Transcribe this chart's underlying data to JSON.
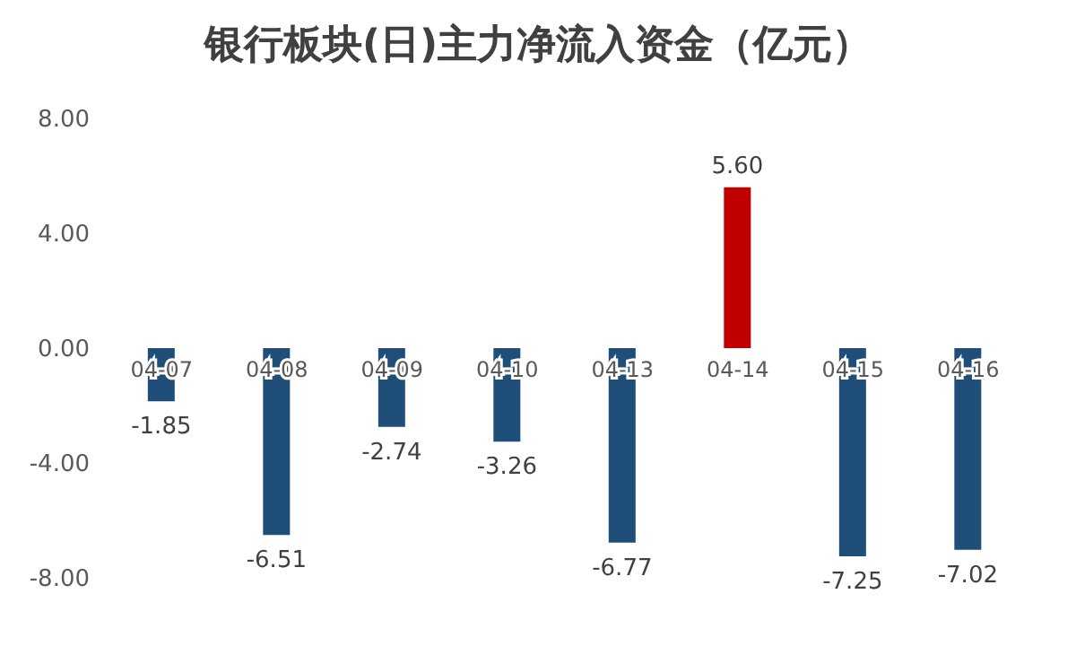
{
  "chart_data": {
    "type": "bar",
    "title": "银行板块(日)主力净流入资金（亿元）",
    "categories": [
      "04-07",
      "04-08",
      "04-09",
      "04-10",
      "04-13",
      "04-14",
      "04-15",
      "04-16"
    ],
    "values": [
      -1.85,
      -6.51,
      -2.74,
      -3.26,
      -6.77,
      5.6,
      -7.25,
      -7.02
    ],
    "colors": [
      "#1f4e79",
      "#1f4e79",
      "#1f4e79",
      "#1f4e79",
      "#1f4e79",
      "#c00000",
      "#1f4e79",
      "#1f4e79"
    ],
    "value_labels": [
      "-1.85",
      "-6.51",
      "-2.74",
      "-3.26",
      "-6.77",
      "5.60",
      "-7.25",
      "-7.02"
    ],
    "ylim": [
      -8,
      8
    ],
    "yticks": [
      {
        "value": 8,
        "label": "8.00"
      },
      {
        "value": 4,
        "label": "4.00"
      },
      {
        "value": 0,
        "label": "0.00"
      },
      {
        "value": -4,
        "label": "-4.00"
      },
      {
        "value": -8,
        "label": "-8.00"
      }
    ],
    "grid": false,
    "legend": false
  }
}
